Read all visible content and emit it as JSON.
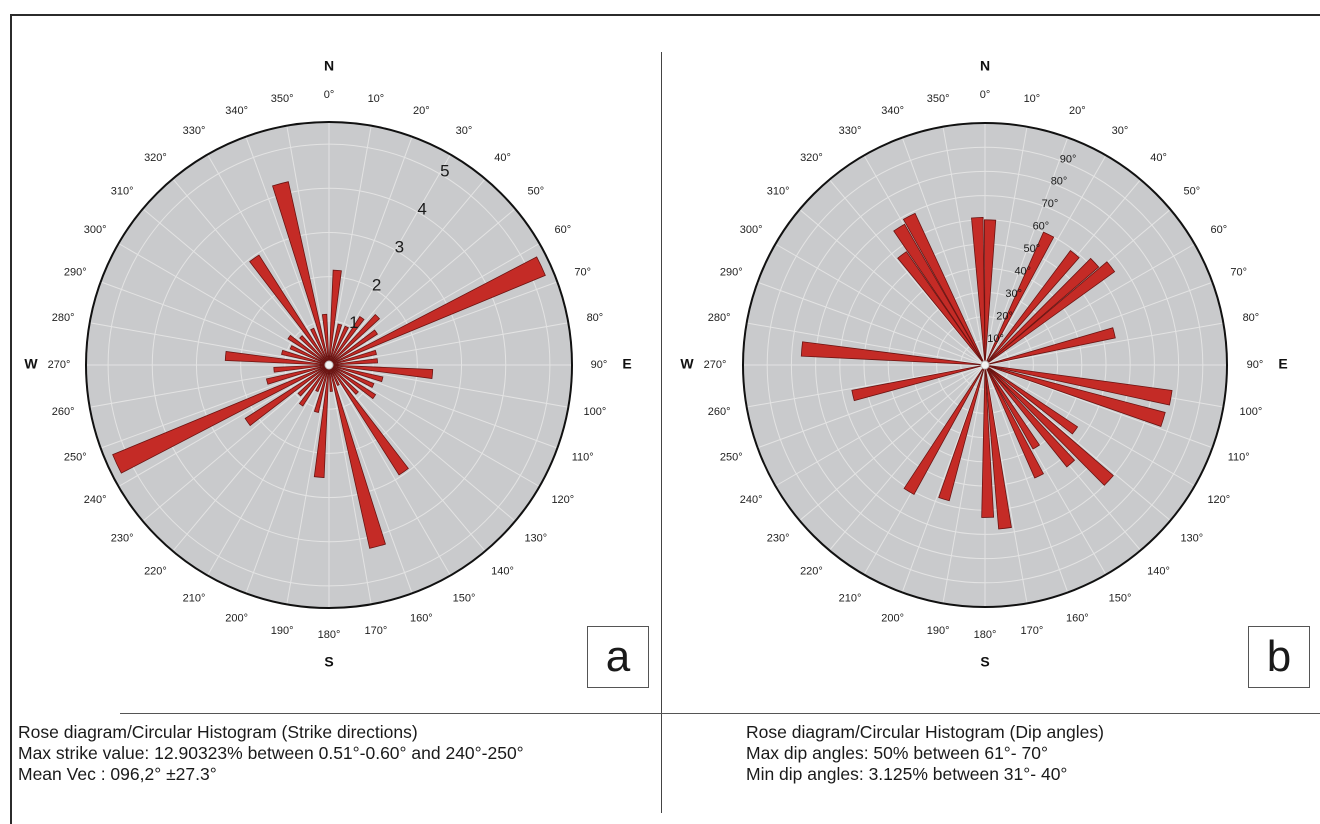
{
  "chart_data": [
    {
      "type": "rose",
      "panel_label": "a",
      "cardinal_labels": {
        "N": "N",
        "E": "E",
        "S": "S",
        "W": "W"
      },
      "angle_tick_labels": [
        "0°",
        "10°",
        "20°",
        "30°",
        "40°",
        "50°",
        "60°",
        "70°",
        "80°",
        "90°",
        "100°",
        "110°",
        "120°",
        "130°",
        "140°",
        "150°",
        "160°",
        "170°",
        "180°",
        "190°",
        "200°",
        "210°",
        "220°",
        "230°",
        "240°",
        "250°",
        "260°",
        "270°",
        "280°",
        "290°",
        "300°",
        "310°",
        "320°",
        "330°",
        "340°",
        "350°"
      ],
      "radial_tick_labels": [
        "1",
        "2",
        "3",
        "4",
        "5"
      ],
      "radial_max": 5.5,
      "bin_width_deg": 10,
      "bin_start_deg": [
        0,
        10,
        20,
        30,
        40,
        50,
        60,
        70,
        80,
        90,
        100,
        110,
        120,
        130,
        140,
        150,
        160,
        170,
        180,
        190,
        200,
        210,
        220,
        230,
        240,
        250,
        260,
        270,
        280,
        290,
        300,
        310,
        320,
        330,
        340,
        350
      ],
      "values": [
        2.15,
        0.95,
        0.95,
        1.3,
        1.55,
        1.3,
        5.3,
        1.1,
        1.1,
        2.35,
        1.25,
        1.1,
        1.25,
        0.9,
        2.95,
        0.5,
        4.25,
        0.6,
        2.55,
        1.1,
        0.65,
        1.1,
        0.95,
        2.25,
        5.3,
        1.45,
        1.25,
        2.35,
        1.1,
        0.95,
        1.1,
        0.9,
        2.95,
        0.9,
        4.25,
        1.15
      ],
      "caption": [
        "Rose diagram/Circular Histogram (Strike directions)",
        "Max strike value: 12.90323% between 0.51°-0.60° and 240°-250°",
        "Mean Vec : 096,2° ±27.3°"
      ],
      "colors": {
        "bar": "#c42b26",
        "bar_edge": "#6b1412",
        "background": "#c9cacc",
        "grid": "#e3e3e3"
      }
    },
    {
      "type": "rose",
      "panel_label": "b",
      "cardinal_labels": {
        "N": "N",
        "E": "E",
        "S": "S",
        "W": "W"
      },
      "angle_tick_labels": [
        "0°",
        "10°",
        "20°",
        "30°",
        "40°",
        "50°",
        "60°",
        "70°",
        "80°",
        "90°",
        "100°",
        "110°",
        "120°",
        "130°",
        "140°",
        "150°",
        "160°",
        "170°",
        "180°",
        "190°",
        "200°",
        "210°",
        "220°",
        "230°",
        "240°",
        "250°",
        "260°",
        "270°",
        "280°",
        "290°",
        "300°",
        "310°",
        "320°",
        "330°",
        "340°",
        "350°"
      ],
      "radial_tick_labels": [
        "10°",
        "20°",
        "30°",
        "40°",
        "50°",
        "60°",
        "70°",
        "80°",
        "90°"
      ],
      "radial_max": 100,
      "bin_width_deg": 4.5,
      "bars": [
        {
          "center_deg": 357,
          "value": 61
        },
        {
          "center_deg": 2,
          "value": 60
        },
        {
          "center_deg": 26,
          "value": 60
        },
        {
          "center_deg": 39,
          "value": 59
        },
        {
          "center_deg": 47,
          "value": 62
        },
        {
          "center_deg": 52,
          "value": 66
        },
        {
          "center_deg": 76,
          "value": 55
        },
        {
          "center_deg": 100,
          "value": 78
        },
        {
          "center_deg": 107,
          "value": 77
        },
        {
          "center_deg": 126,
          "value": 46
        },
        {
          "center_deg": 133,
          "value": 70
        },
        {
          "center_deg": 139,
          "value": 54
        },
        {
          "center_deg": 148,
          "value": 40
        },
        {
          "center_deg": 154,
          "value": 51
        },
        {
          "center_deg": 173,
          "value": 68
        },
        {
          "center_deg": 179,
          "value": 63
        },
        {
          "center_deg": 197,
          "value": 58
        },
        {
          "center_deg": 211,
          "value": 61
        },
        {
          "center_deg": 257,
          "value": 56
        },
        {
          "center_deg": 275,
          "value": 76
        },
        {
          "center_deg": 323,
          "value": 57
        },
        {
          "center_deg": 328,
          "value": 67
        },
        {
          "center_deg": 333,
          "value": 69
        }
      ],
      "caption": [
        "Rose diagram/Circular Histogram (Dip angles)",
        "Max dip angles: 50% between 61°- 70°",
        "Min dip angles: 3.125% between 31°- 40°"
      ],
      "colors": {
        "bar": "#c42b26",
        "bar_edge": "#6b1412",
        "background": "#c9cacc",
        "grid": "#e3e3e3"
      }
    }
  ]
}
